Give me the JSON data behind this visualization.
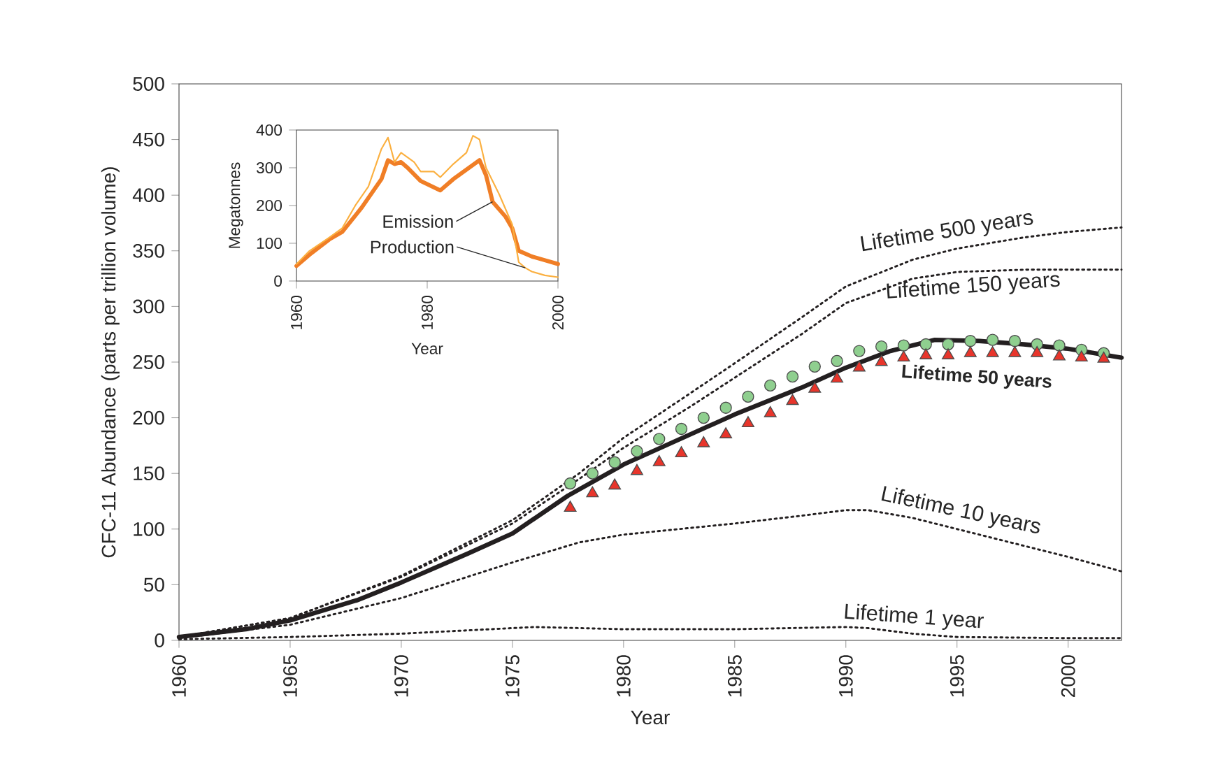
{
  "chart_data": [
    {
      "type": "line",
      "xlabel": "Year",
      "ylabel": "CFC-11 Abundance (parts per trillion volume)",
      "xlim": [
        1960,
        2002.4
      ],
      "ylim": [
        0,
        500
      ],
      "xticks": [
        1960,
        1965,
        1970,
        1975,
        1980,
        1985,
        1990,
        1995,
        2000
      ],
      "yticks": [
        0,
        50,
        100,
        150,
        200,
        250,
        300,
        350,
        400,
        450,
        500
      ],
      "series": [
        {
          "name": "Lifetime 500 years",
          "color": "#231f20",
          "line_style": "dotted",
          "x": [
            1960,
            1965,
            1970,
            1975,
            1978,
            1980,
            1983,
            1985,
            1988,
            1990,
            1993,
            1995,
            1998,
            2000,
            2002.4
          ],
          "values": [
            3,
            20,
            58,
            108,
            150,
            182,
            222,
            249,
            290,
            318,
            342,
            352,
            362,
            367,
            371
          ]
        },
        {
          "name": "Lifetime 150 years",
          "color": "#231f20",
          "line_style": "dotted",
          "x": [
            1960,
            1965,
            1970,
            1975,
            1978,
            1980,
            1983,
            1985,
            1988,
            1990,
            1993,
            1995,
            1998,
            2000,
            2002.4
          ],
          "values": [
            3,
            20,
            57,
            105,
            145,
            173,
            210,
            236,
            275,
            303,
            325,
            331,
            333,
            333,
            333
          ]
        },
        {
          "name": "Lifetime 50 years",
          "color": "#231f20",
          "line_style": "solid",
          "x": [
            1960,
            1963,
            1965,
            1968,
            1970,
            1973,
            1975,
            1977.5,
            1980,
            1983,
            1985,
            1988,
            1990,
            1992,
            1994,
            1996,
            1998,
            2000,
            2002.4
          ],
          "values": [
            3,
            10,
            18,
            36,
            52,
            78,
            96,
            130,
            158,
            185,
            203,
            227,
            245,
            260,
            270,
            269,
            266,
            262,
            254
          ]
        },
        {
          "name": "Lifetime 10 years",
          "color": "#231f20",
          "line_style": "dotted",
          "x": [
            1960,
            1965,
            1970,
            1975,
            1978,
            1980,
            1985,
            1988,
            1990,
            1991,
            1993,
            1995,
            1998,
            2000,
            2002.4
          ],
          "values": [
            2,
            14,
            38,
            70,
            88,
            95,
            105,
            112,
            117,
            117,
            110,
            100,
            85,
            75,
            62
          ]
        },
        {
          "name": "Lifetime 1 year",
          "color": "#231f20",
          "line_style": "dotted",
          "x": [
            1960,
            1965,
            1970,
            1975,
            1976,
            1980,
            1985,
            1990,
            1991,
            1993,
            1995,
            2000,
            2002.4
          ],
          "values": [
            1,
            3,
            6,
            11,
            12,
            10,
            10,
            12,
            11,
            6,
            3,
            2,
            2
          ]
        },
        {
          "type": "scatter",
          "marker": "circle",
          "color": "#8fcf8f",
          "x": [
            1977.6,
            1978.6,
            1979.6,
            1980.6,
            1981.6,
            1982.6,
            1983.6,
            1984.6,
            1985.6,
            1986.6,
            1987.6,
            1988.6,
            1989.6,
            1990.6,
            1991.6,
            1992.6,
            1993.6,
            1994.6,
            1995.6,
            1996.6,
            1997.6,
            1998.6,
            1999.6,
            2000.6,
            2001.6
          ],
          "values": [
            141,
            150,
            160,
            170,
            181,
            190,
            200,
            209,
            219,
            229,
            237,
            246,
            251,
            260,
            264,
            265,
            266,
            266,
            269,
            270,
            269,
            266,
            265,
            261,
            258
          ]
        },
        {
          "type": "scatter",
          "marker": "triangle",
          "color": "#e8352b",
          "x": [
            1977.6,
            1978.6,
            1979.6,
            1980.6,
            1981.6,
            1982.6,
            1983.6,
            1984.6,
            1985.6,
            1986.6,
            1987.6,
            1988.6,
            1989.6,
            1990.6,
            1991.6,
            1992.6,
            1993.6,
            1994.6,
            1995.6,
            1996.6,
            1997.6,
            1998.6,
            1999.6,
            2000.6,
            2001.6
          ],
          "values": [
            119,
            132,
            139,
            152,
            160,
            168,
            177,
            185,
            195,
            204,
            215,
            226,
            235,
            245,
            250,
            254,
            256,
            256,
            258,
            258,
            258,
            258,
            255,
            254,
            253
          ]
        }
      ]
    },
    {
      "type": "line",
      "xlabel": "Year",
      "ylabel": "Megatonnes",
      "xlim": [
        1960,
        2000
      ],
      "ylim": [
        0,
        400
      ],
      "xticks": [
        1960,
        1980,
        2000
      ],
      "yticks": [
        0,
        100,
        200,
        300,
        400
      ],
      "series": [
        {
          "name": "Emission",
          "color": "#f07e26",
          "x": [
            1960,
            1962,
            1965,
            1967,
            1970,
            1973,
            1974,
            1975,
            1976,
            1977,
            1979,
            1982,
            1984,
            1986,
            1988,
            1989,
            1990,
            1992,
            1993,
            1994,
            1996,
            1998,
            2000
          ],
          "values": [
            40,
            70,
            110,
            130,
            195,
            270,
            320,
            310,
            315,
            300,
            265,
            240,
            270,
            295,
            320,
            280,
            210,
            170,
            140,
            80,
            65,
            55,
            45
          ]
        },
        {
          "name": "Production",
          "color": "#fbb040",
          "x": [
            1960,
            1962,
            1965,
            1967,
            1969,
            1971,
            1973,
            1974,
            1975,
            1976,
            1978,
            1979,
            1981,
            1982,
            1984,
            1986,
            1987,
            1988,
            1989,
            1991,
            1993,
            1994,
            1995,
            1996,
            1998,
            2000
          ],
          "values": [
            45,
            80,
            115,
            140,
            200,
            250,
            350,
            380,
            315,
            340,
            315,
            290,
            290,
            275,
            310,
            340,
            385,
            375,
            300,
            230,
            150,
            50,
            35,
            25,
            15,
            10
          ]
        }
      ]
    }
  ]
}
